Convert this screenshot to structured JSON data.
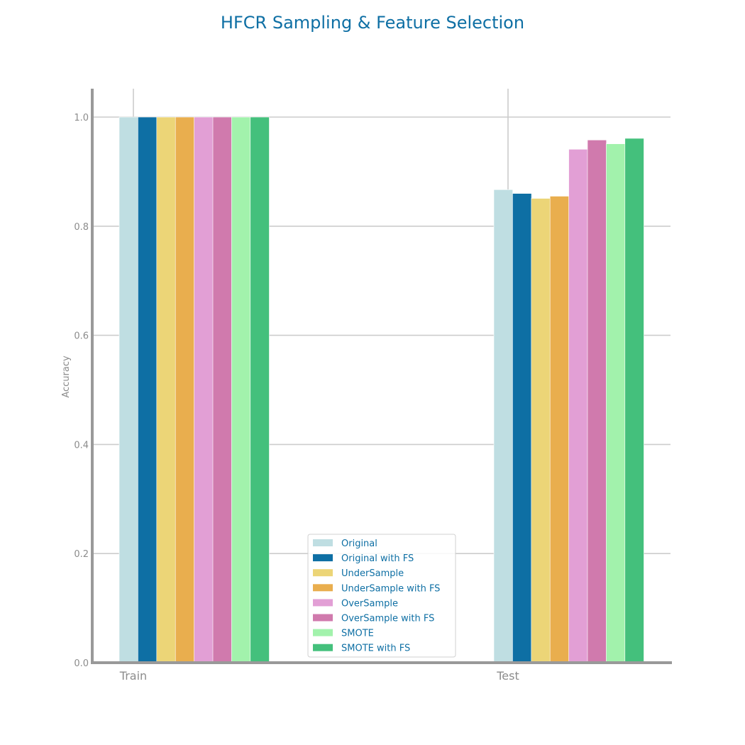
{
  "chart_data": {
    "type": "bar",
    "title": "HFCR Sampling & Feature Selection",
    "xlabel": "",
    "ylabel": "Accuracy",
    "categories": [
      "Train",
      "Test"
    ],
    "ylim": [
      0,
      1.05
    ],
    "yticks": [
      "0.0",
      "0.2",
      "0.4",
      "0.6",
      "0.8",
      "1.0"
    ],
    "grid": "horizontal",
    "legend_position": "lower-center",
    "series": [
      {
        "name": "Original",
        "values": [
          1.0,
          0.867
        ],
        "color": "#bfdee2"
      },
      {
        "name": "Original with FS",
        "values": [
          1.0,
          0.86
        ],
        "color": "#0e6fa4"
      },
      {
        "name": "UnderSample",
        "values": [
          1.0,
          0.851
        ],
        "color": "#ecd577"
      },
      {
        "name": "UnderSample with FS",
        "values": [
          1.0,
          0.855
        ],
        "color": "#e9ae4e"
      },
      {
        "name": "OverSample",
        "values": [
          1.0,
          0.941
        ],
        "color": "#e29fd5"
      },
      {
        "name": "OverSample with FS",
        "values": [
          1.0,
          0.958
        ],
        "color": "#d07aad"
      },
      {
        "name": "SMOTE",
        "values": [
          1.0,
          0.951
        ],
        "color": "#a2f2ac"
      },
      {
        "name": "SMOTE with FS",
        "values": [
          1.0,
          0.961
        ],
        "color": "#44c07c"
      }
    ],
    "colors": {
      "title": "#0e6fa4",
      "legend_text": "#0e6fa4",
      "axis": "#999999",
      "grid": "#cccccc",
      "tick_text": "#8c8c8c"
    }
  }
}
